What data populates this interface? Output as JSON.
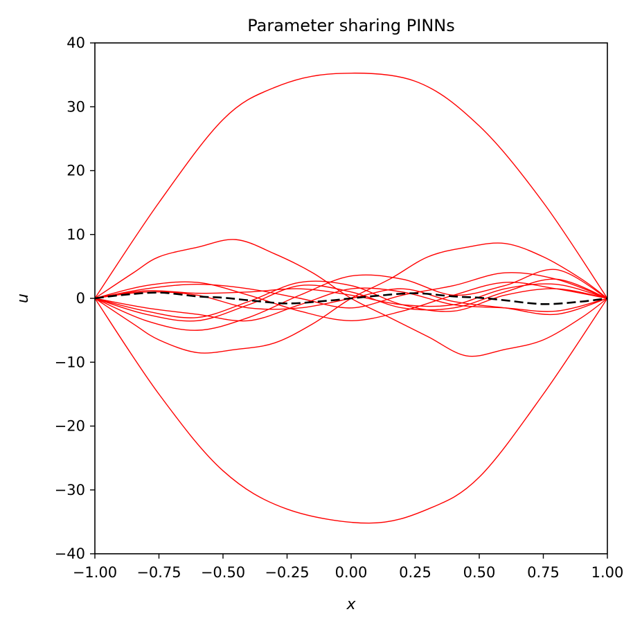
{
  "chart_data": {
    "type": "line",
    "title": "Parameter sharing PINNs",
    "xlabel": "x",
    "ylabel": "u",
    "xlim": [
      -1.0,
      1.0
    ],
    "ylim": [
      -40,
      40
    ],
    "xticks": [
      "−1.00",
      "−0.75",
      "−0.50",
      "−0.25",
      "0.00",
      "0.25",
      "0.50",
      "0.75",
      "1.00"
    ],
    "xtick_values": [
      -1.0,
      -0.75,
      -0.5,
      -0.25,
      0.0,
      0.25,
      0.5,
      0.75,
      1.0
    ],
    "yticks": [
      "−40",
      "−30",
      "−20",
      "−10",
      "0",
      "10",
      "20",
      "30",
      "40"
    ],
    "ytick_values": [
      -40,
      -30,
      -20,
      -10,
      0,
      10,
      20,
      30,
      40
    ],
    "grid": false,
    "colors": {
      "predictions": "#ff0000",
      "reference": "#000000"
    },
    "reference": {
      "style": "dashed",
      "x": [
        -1.0,
        -0.9,
        -0.75,
        -0.6,
        -0.5,
        -0.4,
        -0.25,
        -0.1,
        0.0,
        0.1,
        0.25,
        0.4,
        0.5,
        0.6,
        0.75,
        0.9,
        1.0
      ],
      "y": [
        0,
        0.5,
        0.9,
        0.3,
        0.1,
        -0.3,
        -0.8,
        -0.4,
        0,
        0.4,
        0.8,
        0.3,
        0.1,
        -0.3,
        -0.9,
        -0.5,
        0
      ]
    },
    "series": [
      {
        "x": [
          -1.0,
          -0.75,
          -0.5,
          -0.3,
          -0.06,
          0.25,
          0.5,
          0.75,
          1.0
        ],
        "y": [
          0,
          15,
          28,
          33,
          35.2,
          34,
          27,
          15,
          0
        ]
      },
      {
        "x": [
          -1.0,
          -0.75,
          -0.5,
          -0.25,
          0.07,
          0.3,
          0.5,
          0.75,
          1.0
        ],
        "y": [
          0,
          -15,
          -27,
          -33,
          -35.2,
          -33,
          -28,
          -15,
          0
        ]
      },
      {
        "x": [
          -1.0,
          -0.85,
          -0.75,
          -0.6,
          -0.45,
          -0.3,
          -0.15,
          0.0,
          0.15,
          0.3,
          0.45,
          0.6,
          0.75,
          0.9,
          1.0
        ],
        "y": [
          0,
          4,
          6.5,
          8,
          9.2,
          7,
          4,
          0,
          -3,
          -6,
          -9,
          -8,
          -6.5,
          -3,
          0
        ]
      },
      {
        "x": [
          -1.0,
          -0.85,
          -0.75,
          -0.6,
          -0.45,
          -0.3,
          -0.15,
          0.0,
          0.15,
          0.3,
          0.45,
          0.6,
          0.75,
          0.9,
          1.0
        ],
        "y": [
          0,
          -4,
          -6.5,
          -8.5,
          -8,
          -7,
          -4,
          0,
          3,
          6.5,
          8,
          8.6,
          6.5,
          3,
          0
        ]
      },
      {
        "x": [
          -1.0,
          -0.8,
          -0.6,
          -0.4,
          -0.2,
          0.0,
          0.2,
          0.4,
          0.6,
          0.8,
          1.0
        ],
        "y": [
          0,
          -3.5,
          -5,
          -3,
          0.5,
          3.5,
          3,
          0.5,
          2,
          4.5,
          0
        ]
      },
      {
        "x": [
          -1.0,
          -0.8,
          -0.6,
          -0.4,
          -0.2,
          0.0,
          0.2,
          0.4,
          0.6,
          0.8,
          1.0
        ],
        "y": [
          0,
          2,
          2.5,
          0.5,
          -2,
          -3.5,
          -2,
          0.5,
          2.5,
          1.5,
          0
        ]
      },
      {
        "x": [
          -1.0,
          -0.8,
          -0.6,
          -0.4,
          -0.2,
          0.0,
          0.2,
          0.4,
          0.6,
          0.8,
          1.0
        ],
        "y": [
          0,
          -2.5,
          -3.5,
          -1,
          2,
          1,
          -1.5,
          -1.5,
          1,
          3,
          0
        ]
      },
      {
        "x": [
          -1.0,
          -0.8,
          -0.6,
          -0.4,
          -0.2,
          0.0,
          0.2,
          0.4,
          0.6,
          0.8,
          1.0
        ],
        "y": [
          0,
          1.5,
          2.2,
          1.5,
          0,
          -1.5,
          0.5,
          2,
          4,
          3,
          0
        ]
      },
      {
        "x": [
          -1.0,
          -0.8,
          -0.6,
          -0.4,
          -0.2,
          0.0,
          0.2,
          0.4,
          0.6,
          0.8,
          1.0
        ],
        "y": [
          0,
          -1.5,
          -2.5,
          -3.5,
          -1,
          1.5,
          1,
          -1,
          -1.5,
          -2,
          0
        ]
      },
      {
        "x": [
          -1.0,
          -0.8,
          -0.6,
          -0.4,
          -0.2,
          0.0,
          0.2,
          0.4,
          0.6,
          0.8,
          1.0
        ],
        "y": [
          0,
          1,
          0.5,
          -1.5,
          -1.5,
          0,
          1.5,
          -0.5,
          -1.5,
          -2.5,
          0
        ]
      },
      {
        "x": [
          -1.0,
          -0.8,
          -0.6,
          -0.4,
          -0.2,
          0.0,
          0.2,
          0.4,
          0.6,
          0.8,
          1.0
        ],
        "y": [
          0,
          -2,
          -3,
          -0.5,
          2.5,
          2,
          -1,
          -2,
          0.5,
          1.5,
          0
        ]
      },
      {
        "x": [
          -1.0,
          -0.8,
          -0.6,
          -0.4,
          -0.2,
          0.0,
          0.2,
          0.4,
          0.6,
          0.8,
          1.0
        ],
        "y": [
          0,
          1.2,
          0.8,
          1,
          1.5,
          0.5,
          -1,
          -1,
          1.5,
          2.2,
          0
        ]
      }
    ]
  }
}
